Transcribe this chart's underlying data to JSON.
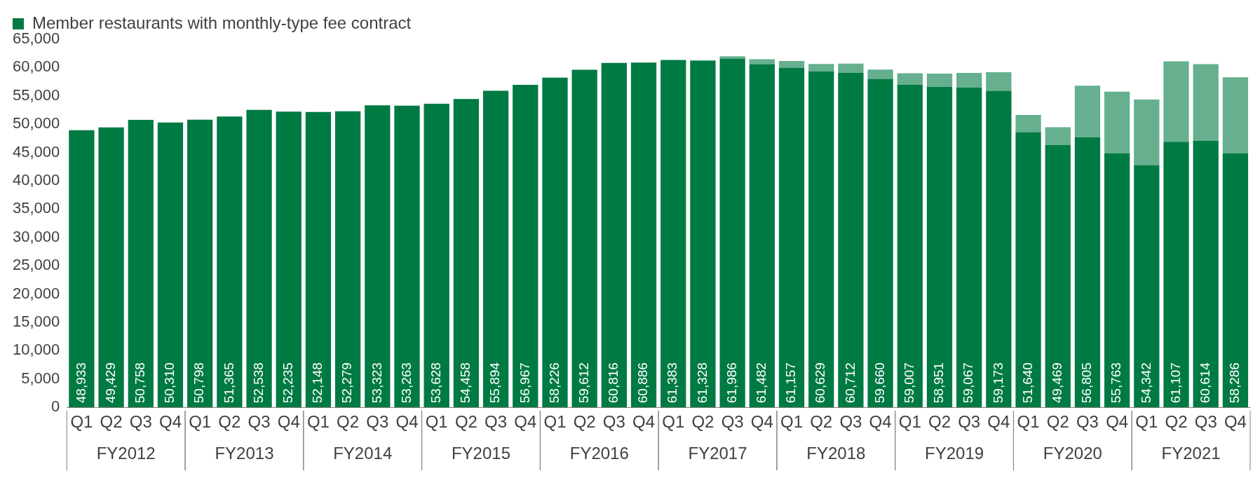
{
  "chart_data": {
    "type": "bar",
    "stacked": true,
    "categories": [
      "Q1",
      "Q2",
      "Q3",
      "Q4",
      "Q1",
      "Q2",
      "Q3",
      "Q4",
      "Q1",
      "Q2",
      "Q3",
      "Q4",
      "Q1",
      "Q2",
      "Q3",
      "Q4",
      "Q1",
      "Q2",
      "Q3",
      "Q4",
      "Q1",
      "Q2",
      "Q3",
      "Q4",
      "Q1",
      "Q2",
      "Q3",
      "Q4",
      "Q1",
      "Q2",
      "Q3",
      "Q4",
      "Q1",
      "Q2",
      "Q3",
      "Q4",
      "Q1",
      "Q2",
      "Q3",
      "Q4"
    ],
    "series": [
      {
        "name": "Member restaurants with monthly-type fee contract",
        "color": "#007a43",
        "values": [
          48933,
          49429,
          50758,
          50310,
          50798,
          51365,
          52538,
          52235,
          52148,
          52279,
          53323,
          53263,
          53628,
          54458,
          55894,
          56967,
          58226,
          59612,
          60816,
          60886,
          61300,
          61200,
          61600,
          60600,
          60000,
          59300,
          59100,
          58000,
          57000,
          56600,
          56500,
          55900,
          48600,
          46300,
          47700,
          44900,
          42800,
          46900,
          47100,
          44900
        ]
      },
      {
        "color": "#66b08f",
        "values": [
          0,
          0,
          0,
          0,
          0,
          0,
          0,
          0,
          0,
          0,
          0,
          0,
          0,
          0,
          0,
          0,
          0,
          0,
          0,
          0,
          83,
          128,
          386,
          882,
          1157,
          1329,
          1612,
          1660,
          2007,
          2351,
          2567,
          3273,
          3040,
          3169,
          9105,
          10863,
          11542,
          14207,
          13514,
          13386
        ]
      }
    ],
    "totals": [
      "48,933",
      "49,429",
      "50,758",
      "50,310",
      "50,798",
      "51,365",
      "52,538",
      "52,235",
      "52,148",
      "52,279",
      "53,323",
      "53,263",
      "53,628",
      "54,458",
      "55,894",
      "56,967",
      "58,226",
      "59,612",
      "60,816",
      "60,886",
      "61,383",
      "61,328",
      "61,986",
      "61,482",
      "61,157",
      "60,629",
      "60,712",
      "59,660",
      "59,007",
      "58,951",
      "59,067",
      "59,173",
      "51,640",
      "49,469",
      "56,805",
      "55,763",
      "54,342",
      "61,107",
      "60,614",
      "58,286"
    ],
    "annotations": [
      "FY2012",
      "FY2013",
      "FY2014",
      "FY2015",
      "FY2016",
      "FY2017",
      "FY2018",
      "FY2019",
      "FY2020",
      "FY2021"
    ],
    "ylim": [
      0,
      65000
    ],
    "yticks": [
      0,
      {
        "value": 5000,
        "label": "5,000"
      },
      {
        "value": 10000,
        "label": "10,000"
      },
      {
        "value": 15000,
        "label": "15,000"
      },
      {
        "value": 20000,
        "label": "20,000"
      },
      {
        "value": 25000,
        "label": "25,000"
      },
      {
        "value": 30000,
        "label": "30,000"
      },
      {
        "value": 35000,
        "label": "35,000"
      },
      {
        "value": 40000,
        "label": "40,000"
      },
      {
        "value": 45000,
        "label": "45,000"
      },
      {
        "value": 50000,
        "label": "50,000"
      },
      {
        "value": 55000,
        "label": "55,000"
      },
      {
        "value": 60000,
        "label": "60,000"
      },
      {
        "value": 65000,
        "label": "65,000"
      }
    ],
    "grid": false,
    "legend": "top left"
  }
}
